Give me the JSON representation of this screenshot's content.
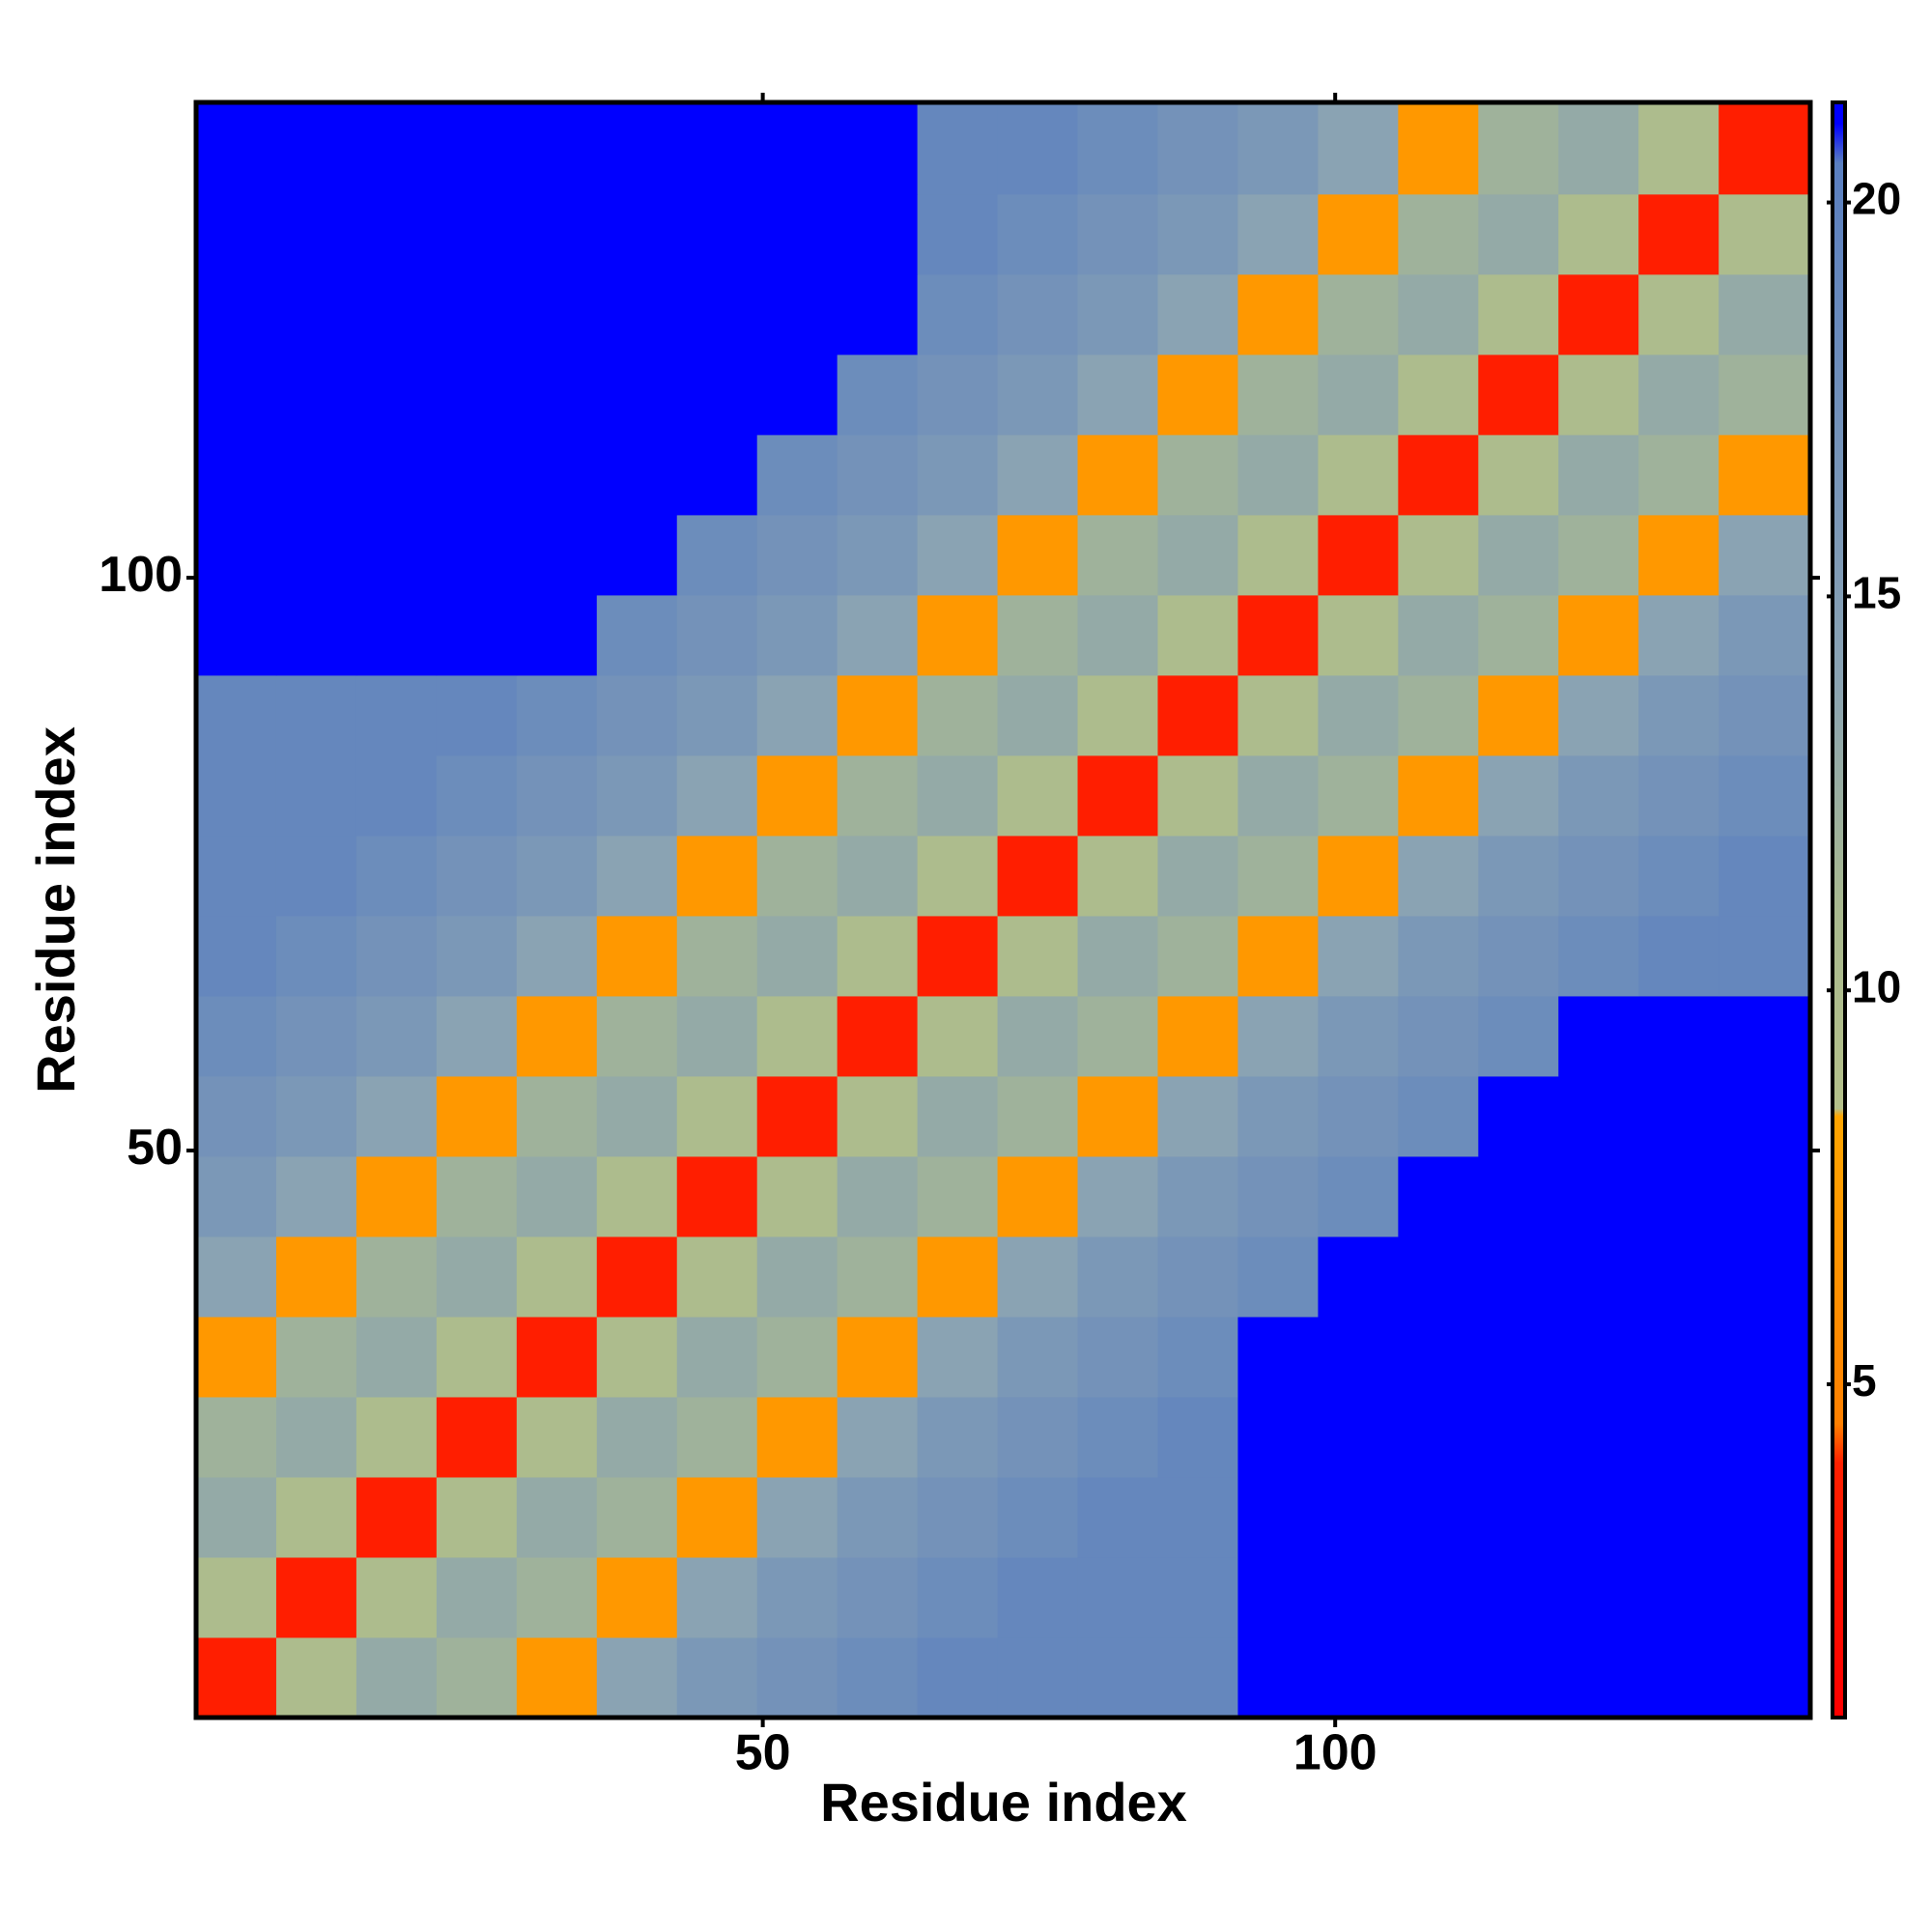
{
  "chart_data": {
    "type": "heatmap",
    "xlabel": "Residue index",
    "ylabel": "Residue index",
    "xlim": [
      0.5,
      141.5
    ],
    "ylim": [
      0.5,
      141.5
    ],
    "xticks": [
      50,
      100
    ],
    "yticks": [
      50,
      100
    ],
    "xbins": [
      0.5,
      7.5,
      14.5,
      21.5,
      28.5,
      35.5,
      42.5,
      49.5,
      56.5,
      63.5,
      70.5,
      77.5,
      84.5,
      91.5,
      98.5,
      105.5,
      112.5,
      119.5,
      126.5,
      133.5,
      141.5
    ],
    "ybins": [
      0.5,
      7.5,
      14.5,
      21.5,
      28.5,
      35.5,
      42.5,
      49.5,
      56.5,
      63.5,
      70.5,
      77.5,
      84.5,
      91.5,
      98.5,
      105.5,
      112.5,
      119.5,
      126.5,
      133.5,
      141.5
    ],
    "z": [
      [
        3.8,
        10,
        13,
        12,
        7,
        14,
        16,
        17,
        18,
        19,
        19,
        19,
        19,
        21,
        21,
        21,
        21,
        21,
        21,
        21
      ],
      [
        10,
        3.8,
        10,
        13,
        12,
        7,
        14,
        16,
        17,
        18,
        19,
        19,
        19,
        21,
        21,
        21,
        21,
        21,
        21,
        21
      ],
      [
        13,
        10,
        3.8,
        10,
        13,
        12,
        7,
        14,
        16,
        17,
        18,
        19,
        19,
        21,
        21,
        21,
        21,
        21,
        21,
        21
      ],
      [
        12,
        13,
        10,
        3.8,
        10,
        13,
        12,
        7,
        14,
        16,
        17,
        18,
        19,
        21,
        21,
        21,
        21,
        21,
        21,
        21
      ],
      [
        7,
        12,
        13,
        10,
        3.8,
        10,
        13,
        12,
        7,
        14,
        16,
        17,
        18,
        21,
        21,
        21,
        21,
        21,
        21,
        21
      ],
      [
        14,
        7,
        12,
        13,
        10,
        3.8,
        10,
        13,
        12,
        7,
        14,
        16,
        17,
        18,
        21,
        21,
        21,
        21,
        21,
        21
      ],
      [
        16,
        14,
        7,
        12,
        13,
        10,
        3.8,
        10,
        13,
        12,
        7,
        14,
        16,
        17,
        18,
        21,
        21,
        21,
        21,
        21
      ],
      [
        17,
        16,
        14,
        7,
        12,
        13,
        10,
        3.8,
        10,
        13,
        12,
        7,
        14,
        16,
        17,
        18,
        21,
        21,
        21,
        21
      ],
      [
        18,
        17,
        16,
        14,
        7,
        12,
        13,
        10,
        3.8,
        10,
        13,
        12,
        7,
        14,
        16,
        17,
        18,
        21,
        21,
        21
      ],
      [
        19,
        18,
        17,
        16,
        14,
        7,
        12,
        13,
        10,
        3.8,
        10,
        13,
        12,
        7,
        14,
        16,
        17,
        18,
        19,
        19
      ],
      [
        19,
        19,
        18,
        17,
        16,
        14,
        7,
        12,
        13,
        10,
        3.8,
        10,
        13,
        12,
        7,
        14,
        16,
        17,
        18,
        19
      ],
      [
        19,
        19,
        19,
        18,
        17,
        16,
        14,
        7,
        12,
        13,
        10,
        3.8,
        10,
        13,
        12,
        7,
        14,
        16,
        17,
        18
      ],
      [
        19,
        19,
        19,
        19,
        18,
        17,
        16,
        14,
        7,
        12,
        13,
        10,
        3.8,
        10,
        13,
        12,
        7,
        14,
        16,
        17
      ],
      [
        21,
        21,
        21,
        21,
        21,
        18,
        17,
        16,
        14,
        7,
        12,
        13,
        10,
        3.8,
        10,
        13,
        12,
        7,
        14,
        16
      ],
      [
        21,
        21,
        21,
        21,
        21,
        21,
        18,
        17,
        16,
        14,
        7,
        12,
        13,
        10,
        3.8,
        10,
        13,
        12,
        7,
        14
      ],
      [
        21,
        21,
        21,
        21,
        21,
        21,
        21,
        18,
        17,
        16,
        14,
        7,
        12,
        13,
        10,
        3.8,
        10,
        13,
        12,
        7
      ],
      [
        21,
        21,
        21,
        21,
        21,
        21,
        21,
        21,
        18,
        17,
        16,
        14,
        7,
        12,
        13,
        10,
        3.8,
        10,
        13,
        12
      ],
      [
        21,
        21,
        21,
        21,
        21,
        21,
        21,
        21,
        21,
        18,
        17,
        16,
        14,
        7,
        12,
        13,
        10,
        3.8,
        10,
        13
      ],
      [
        21,
        21,
        21,
        21,
        21,
        21,
        21,
        21,
        21,
        19,
        18,
        17,
        16,
        14,
        7,
        12,
        13,
        10,
        3.8,
        10
      ],
      [
        21,
        21,
        21,
        21,
        21,
        21,
        21,
        21,
        21,
        19,
        19,
        18,
        17,
        16,
        14,
        7,
        12,
        13,
        10,
        3.8
      ]
    ],
    "colorbar": {
      "lim": [
        0.77,
        21.27
      ],
      "ticks": [
        5,
        10,
        15,
        20
      ]
    },
    "colorscale": [
      [
        0.77,
        "#ff0000"
      ],
      [
        4,
        "#ff2000"
      ],
      [
        4.5,
        "#ff8000"
      ],
      [
        8.4,
        "#ffa500"
      ],
      [
        8.5,
        "#b4c08a"
      ],
      [
        11,
        "#a9b98f"
      ],
      [
        14,
        "#8aa3b3"
      ],
      [
        20.5,
        "#5a7fc0"
      ],
      [
        21,
        "#0000ff"
      ],
      [
        21.27,
        "#0000ff"
      ]
    ]
  }
}
